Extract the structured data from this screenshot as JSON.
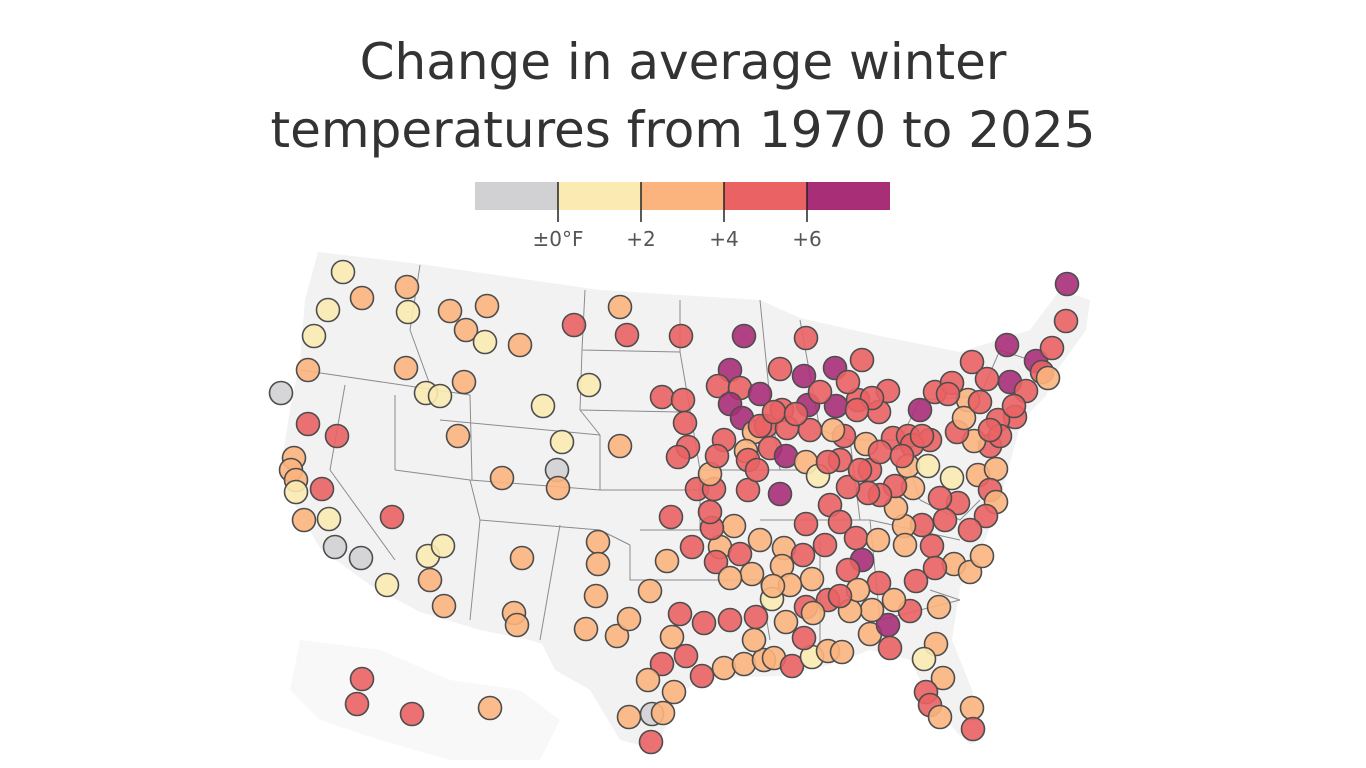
{
  "title_line1": "Change in average winter",
  "title_line2": "temperatures from 1970 to 2025",
  "legend": {
    "bins": [
      {
        "label": "",
        "color": "#d1d1d4"
      },
      {
        "label": "",
        "color": "#fbebb2"
      },
      {
        "label": "",
        "color": "#fbb47d"
      },
      {
        "label": "",
        "color": "#ea6264"
      },
      {
        "label": "",
        "color": "#a82e78"
      }
    ],
    "ticks": [
      "±0°F",
      "+2",
      "+4",
      "+6"
    ]
  },
  "colors": {
    "land": "#f2f2f2",
    "state_border": "#8c8c8c",
    "dot_stroke": "#4d4d4d",
    "text": "#333333"
  },
  "map": {
    "type": "dot map",
    "region": "United States (contiguous)",
    "value_key": "bin 0=<±0°F, 1=0–2, 2=2–4, 3=4–6, 4=>6"
  }
}
